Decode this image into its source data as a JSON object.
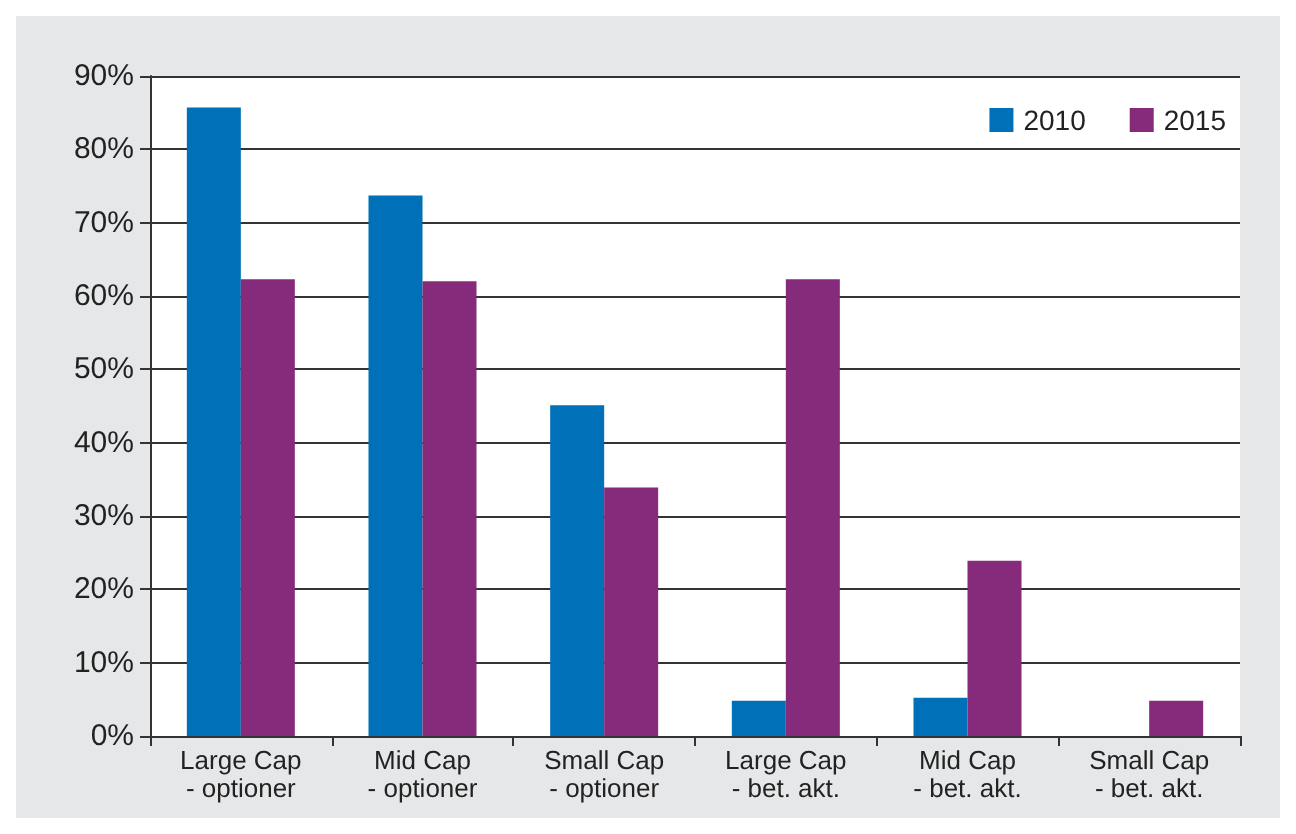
{
  "chart_data": {
    "type": "bar",
    "categories": [
      "Large Cap\n- optioner",
      "Mid Cap\n- optioner",
      "Small Cap\n- optioner",
      "Large Cap\n- bet. akt.",
      "Mid Cap\n- bet. akt.",
      "Small Cap\n- bet. akt."
    ],
    "series": [
      {
        "name": "2010",
        "color": "#0070b8",
        "values": [
          85.7,
          73.7,
          45.1,
          4.8,
          5.2,
          0
        ]
      },
      {
        "name": "2015",
        "color": "#862b7c",
        "values": [
          62.3,
          62.0,
          33.9,
          62.3,
          23.9,
          4.8
        ]
      }
    ],
    "ylim": [
      0,
      90
    ],
    "yticks": [
      {
        "value": 0,
        "label": "0%"
      },
      {
        "value": 10,
        "label": "10%"
      },
      {
        "value": 20,
        "label": "20%"
      },
      {
        "value": 30,
        "label": "30%"
      },
      {
        "value": 40,
        "label": "40%"
      },
      {
        "value": 50,
        "label": "50%"
      },
      {
        "value": 60,
        "label": "60%"
      },
      {
        "value": 70,
        "label": "70%"
      },
      {
        "value": 80,
        "label": "80%"
      },
      {
        "value": 90,
        "label": "90%"
      }
    ],
    "grid": "y",
    "legend": "top right"
  }
}
